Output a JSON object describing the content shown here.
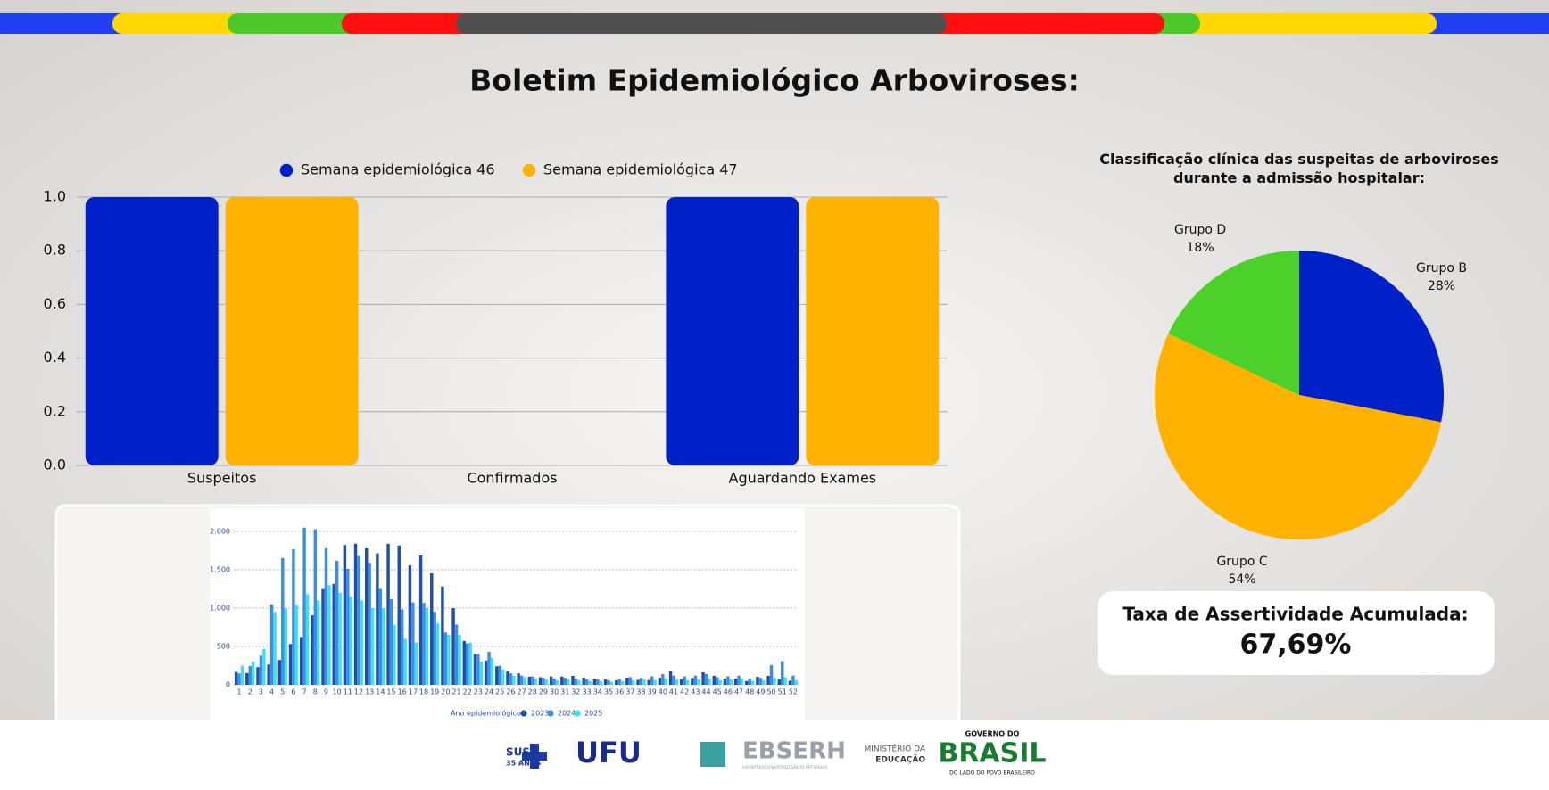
{
  "header": {
    "title": "Boletim Epidemiológico Arboviroses:"
  },
  "chart_data": [
    {
      "type": "bar",
      "categories": [
        "Suspeitos",
        "Confirmados",
        "Aguardando Exames"
      ],
      "series": [
        {
          "name": "Semana epidemiológica 46",
          "color": "#0020c8",
          "values": [
            1,
            0,
            1
          ]
        },
        {
          "name": "Semana epidemiológica 47",
          "color": "#ffb300",
          "values": [
            1,
            0,
            1
          ]
        }
      ],
      "ylim": [
        0,
        1
      ],
      "yticks": [
        {
          "value": 0,
          "label": "0.0"
        },
        0.2,
        0.4,
        0.6,
        0.8,
        {
          "value": 1,
          "label": "1.0"
        }
      ],
      "grid": true,
      "legend": "top"
    },
    {
      "type": "pie",
      "title": "Classificação clínica das suspeitas de arboviroses durante a admissão hospitalar:",
      "categories": [
        "Grupo B",
        "Grupo C",
        "Grupo D"
      ],
      "values": [
        28,
        54,
        18
      ],
      "value_labels": [
        "28%",
        "54%",
        "18%"
      ],
      "colors": [
        "#0020c8",
        "#ffb300",
        "#4cd02a"
      ]
    },
    {
      "type": "bar",
      "categories": [
        "1",
        "2",
        "3",
        "4",
        "5",
        "6",
        "7",
        "8",
        "9",
        "10",
        "11",
        "12",
        "13",
        "14",
        "15",
        "16",
        "17",
        "18",
        "19",
        "20",
        "21",
        "22",
        "23",
        "24",
        "25",
        "26",
        "27",
        "28",
        "29",
        "30",
        "31",
        "32",
        "33",
        "34",
        "35",
        "36",
        "37",
        "38",
        "39",
        "40",
        "41",
        "42",
        "43",
        "44",
        "45",
        "46",
        "47",
        "48",
        "49",
        "50",
        "51",
        "52"
      ],
      "series": [
        {
          "name": "2023",
          "color": "#1f4fa8",
          "values": [
            168,
            153,
            230,
            265,
            324,
            532,
            623,
            906,
            1248,
            1317,
            1823,
            1840,
            1780,
            1714,
            1839,
            1817,
            1559,
            1687,
            1453,
            1282,
            999,
            571,
            400,
            317,
            241,
            174,
            149,
            107,
            99,
            109,
            108,
            117,
            94,
            81,
            68,
            57,
            93,
            64,
            62,
            91,
            182,
            72,
            88,
            163,
            117,
            82,
            81,
            49,
            104,
            117,
            73,
            54
          ]
        },
        {
          "name": "2024",
          "color": "#3a8ee8",
          "values": [
            148,
            245,
            380,
            1050,
            1652,
            1768,
            2049,
            2028,
            1778,
            1617,
            1512,
            1680,
            1590,
            1250,
            1117,
            984,
            1074,
            1068,
            950,
            682,
            784,
            540,
            400,
            430,
            250,
            150,
            120,
            110,
            90,
            80,
            90,
            80,
            70,
            70,
            60,
            70,
            100,
            90,
            110,
            140,
            120,
            110,
            120,
            140,
            100,
            110,
            120,
            80,
            90,
            257,
            307,
            120
          ]
        },
        {
          "name": "2025",
          "color": "#3ee0f0",
          "values": [
            250,
            300,
            467,
            950,
            996,
            1035,
            1181,
            1100,
            1300,
            1200,
            1150,
            1100,
            1000,
            1000,
            780,
            600,
            550,
            1000,
            800,
            650,
            650,
            550,
            300,
            350,
            200,
            120,
            100,
            80,
            70,
            60,
            70,
            60,
            50,
            50,
            40,
            50,
            60,
            70,
            60,
            80,
            70,
            60,
            70,
            80,
            60,
            70,
            80,
            50,
            60,
            90,
            100,
            60
          ]
        }
      ],
      "ylim": [
        0,
        2100
      ],
      "yticks": [
        0,
        500,
        {
          "value": 1000,
          "label": "1.000"
        },
        {
          "value": 1500,
          "label": "1.500"
        },
        {
          "value": 2000,
          "label": "2.000"
        }
      ],
      "grid": true,
      "legend": "bottom",
      "legend_title": "Ano epidemiológico"
    }
  ],
  "kpi": {
    "label": "Taxa de Assertividade Acumulada:",
    "value": "67,69%"
  },
  "footer": {
    "logos": [
      "SUS",
      "35 ANOS",
      "UFU",
      "EBSERH",
      "HOSPITAIS UNIVERSITÁRIOS FEDERAIS",
      "MINISTÉRIO DA",
      "EDUCAÇÃO",
      "GOVERNO DO",
      "BRASIL",
      "DO LADO DO POVO BRASILEIRO"
    ]
  }
}
